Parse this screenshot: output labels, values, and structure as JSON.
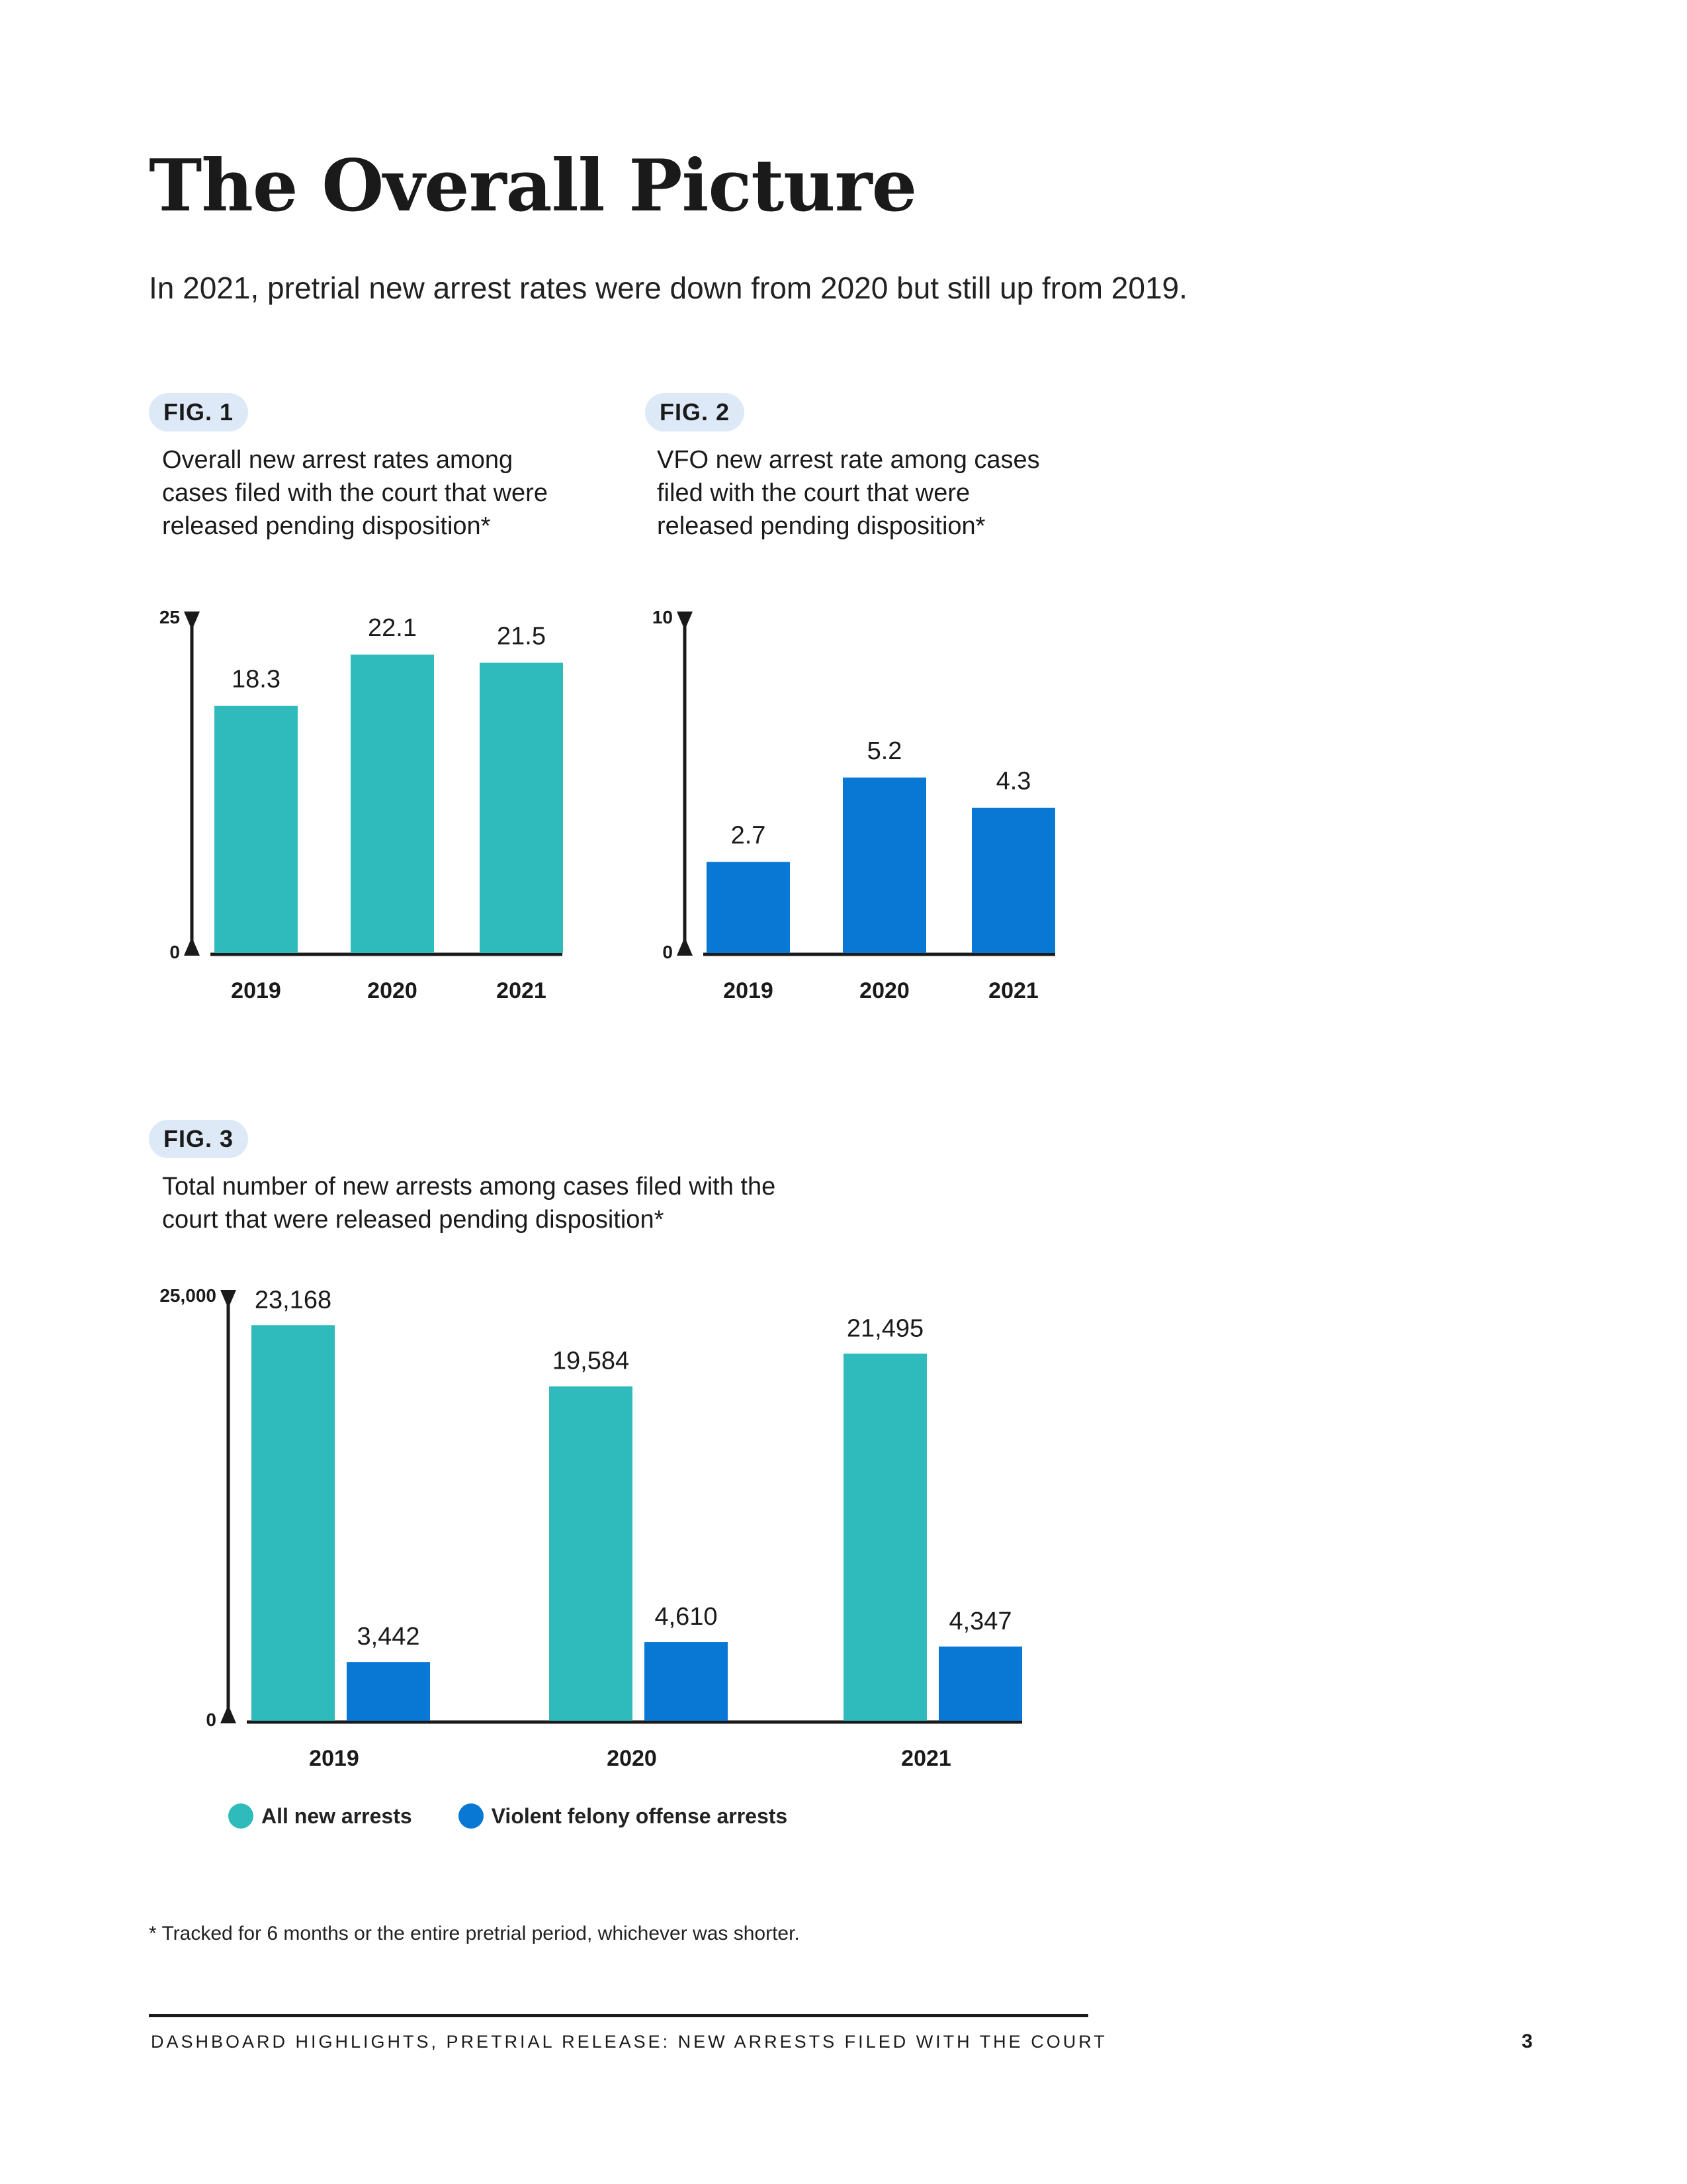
{
  "page": {
    "title": "The Overall Picture",
    "subtitle": "In 2021, pretrial new arrest rates were down from 2020 but still up from 2019.",
    "footnote": "* Tracked for 6 months or the entire pretrial period, whichever was shorter.",
    "footer": "DASHBOARD HIGHLIGHTS, PRETRIAL RELEASE: NEW ARRESTS FILED WITH THE COURT",
    "page_number": "3"
  },
  "figures": [
    {
      "tag": "FIG. 1",
      "caption": [
        "Overall new arrest rates among",
        "cases filed with the court that were",
        "released pending disposition*"
      ]
    },
    {
      "tag": "FIG. 2",
      "caption": [
        "VFO new arrest rate among cases",
        "filed with the court that were",
        "released pending disposition*"
      ]
    },
    {
      "tag": "FIG. 3",
      "caption": [
        "Total number of new arrests among cases filed with the",
        "court that were released pending disposition*"
      ]
    }
  ],
  "legend": [
    {
      "label": "All new arrests",
      "color": "#2fbbbb"
    },
    {
      "label": "Violent felony offense arrests",
      "color": "#0878d4"
    }
  ],
  "chart_data": [
    {
      "type": "bar",
      "categories": [
        "2019",
        "2020",
        "2021"
      ],
      "values": [
        18.3,
        22.1,
        21.5
      ],
      "value_labels": [
        "18.3",
        "22.1",
        "21.5"
      ],
      "ylim": [
        0,
        25
      ],
      "y_ticks": [
        "0",
        "25"
      ],
      "color": "#2fbbbb"
    },
    {
      "type": "bar",
      "categories": [
        "2019",
        "2020",
        "2021"
      ],
      "values": [
        2.7,
        5.2,
        4.3
      ],
      "value_labels": [
        "2.7",
        "5.2",
        "4.3"
      ],
      "ylim": [
        0,
        10
      ],
      "y_ticks": [
        "0",
        "10"
      ],
      "color": "#0878d4"
    },
    {
      "type": "bar",
      "categories": [
        "2019",
        "2020",
        "2021"
      ],
      "series": [
        {
          "name": "All new arrests",
          "values": [
            23168,
            19584,
            21495
          ],
          "value_labels": [
            "23,168",
            "19,584",
            "21,495"
          ],
          "color": "#2fbbbb"
        },
        {
          "name": "Violent felony offense arrests",
          "values": [
            3442,
            4610,
            4347
          ],
          "value_labels": [
            "3,442",
            "4,610",
            "4,347"
          ],
          "color": "#0878d4"
        }
      ],
      "ylim": [
        0,
        25000
      ],
      "y_ticks": [
        "0",
        "25,000"
      ],
      "legend": "bottom"
    }
  ]
}
